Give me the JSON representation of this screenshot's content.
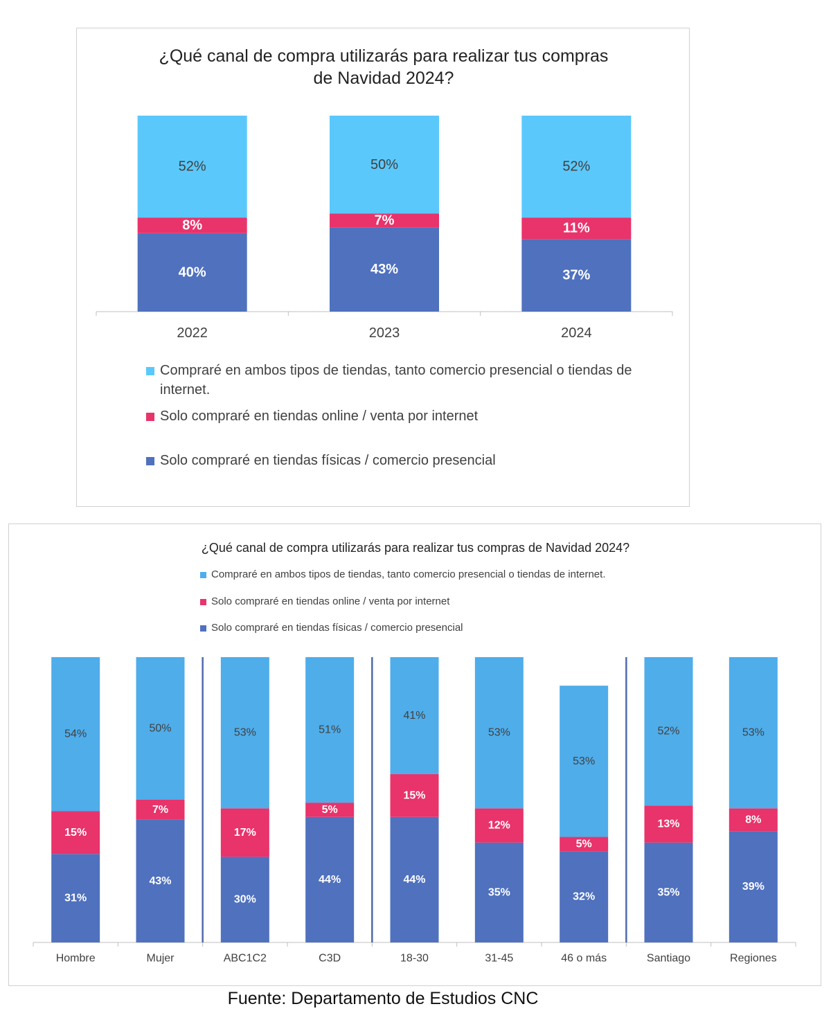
{
  "source": "Fuente: Departamento de Estudios CNC",
  "chart_data": [
    {
      "type": "bar",
      "stacked": true,
      "title_lines": [
        "¿Qué canal de compra utilizarás para realizar tus compras",
        "de Navidad 2024?"
      ],
      "categories": [
        "2022",
        "2023",
        "2024"
      ],
      "series": [
        {
          "name": "Solo compraré en tiendas físicas / comercio presencial",
          "color": "#4f71be",
          "values": [
            40,
            43,
            37
          ]
        },
        {
          "name": "Solo compraré en tiendas online / venta por internet",
          "color": "#e8336b",
          "values": [
            8,
            7,
            11
          ]
        },
        {
          "name": "Compraré en ambos tipos de tiendas, tanto comercio presencial o tiendas de internet.",
          "color": "#5bc8fb",
          "values": [
            52,
            50,
            52
          ]
        }
      ],
      "legend_order": [
        2,
        1,
        0
      ],
      "legend_position": "bottom",
      "ylim": [
        0,
        100
      ],
      "grid": false,
      "value_suffix": "%"
    },
    {
      "type": "bar",
      "stacked": true,
      "title": "¿Qué canal de compra utilizarás para realizar tus compras de Navidad 2024?",
      "categories": [
        "Hombre",
        "Mujer",
        "ABC1C2",
        "C3D",
        "18-30",
        "31-45",
        "46 o más",
        "Santiago",
        "Regiones"
      ],
      "group_separators_after": [
        1,
        3,
        6
      ],
      "series": [
        {
          "name": "Solo compraré en tiendas físicas / comercio presencial",
          "color": "#4f71be",
          "values": [
            31,
            43,
            30,
            44,
            44,
            35,
            32,
            35,
            39
          ]
        },
        {
          "name": "Solo compraré en tiendas online / venta por internet",
          "color": "#e8336b",
          "values": [
            15,
            7,
            17,
            5,
            15,
            12,
            5,
            13,
            8
          ]
        },
        {
          "name": "Compraré en ambos tipos de tiendas, tanto comercio presencial o tiendas de internet.",
          "color": "#4fadea",
          "values": [
            54,
            50,
            53,
            51,
            41,
            53,
            53,
            52,
            53
          ]
        }
      ],
      "legend_order": [
        2,
        1,
        0
      ],
      "legend_position": "top",
      "ylim": [
        0,
        100
      ],
      "grid": false,
      "value_suffix": "%"
    }
  ]
}
